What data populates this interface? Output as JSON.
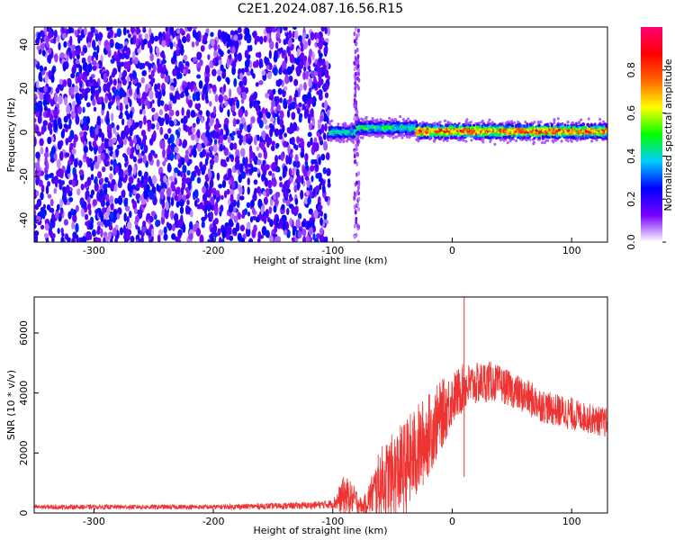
{
  "title": "C2E1.2024.087.16.56.R15",
  "chart_data": [
    {
      "type": "heatmap",
      "xlabel": "Height of straight line (km)",
      "ylabel": "Frequency (Hz)",
      "xlim": [
        -350,
        130
      ],
      "ylim": [
        -50,
        48
      ],
      "x_ticks": [
        -300,
        -200,
        -100,
        0,
        100
      ],
      "x_tick_labels": [
        "-300",
        "-200",
        "-100",
        "0",
        "100"
      ],
      "y_ticks": [
        -40,
        -20,
        0,
        20,
        40
      ],
      "y_tick_labels": [
        "-40",
        "-20",
        "0",
        "20",
        "40"
      ],
      "colorbar": {
        "label": "Normalized spectral amplitude",
        "range": [
          0,
          1
        ],
        "ticks": [
          0.0,
          0.2,
          0.4,
          0.6,
          0.8
        ],
        "tick_labels": [
          "0.0",
          "0.2",
          "0.4",
          "0.6",
          "0.8"
        ],
        "colormap": [
          "#ffffff",
          "#7700ff",
          "#0000ff",
          "#00ccff",
          "#00ff00",
          "#ffff00",
          "#ff6600",
          "#ff0000",
          "#ff0077"
        ]
      },
      "regions": [
        {
          "x_range": [
            -350,
            -103
          ],
          "description": "broadband noise, amplitude 0.1-0.3"
        },
        {
          "x_range": [
            -103,
            -80
          ],
          "center_frequency_hz": 0,
          "peak_amplitude": 0.5
        },
        {
          "x_range": [
            -80,
            -30
          ],
          "center_frequency_hz": 2,
          "peak_amplitude": 0.55
        },
        {
          "x_range": [
            -30,
            130
          ],
          "center_frequency_hz": 0.5,
          "peak_amplitude": 0.95
        }
      ]
    },
    {
      "type": "line",
      "xlabel": "Height of straight line (km)",
      "ylabel": "SNR (10 * v/v)",
      "xlim": [
        -350,
        130
      ],
      "ylim": [
        0,
        7200
      ],
      "x_ticks": [
        -300,
        -200,
        -100,
        0,
        100
      ],
      "x_tick_labels": [
        "-300",
        "-200",
        "-100",
        "0",
        "100"
      ],
      "y_ticks": [
        0,
        2000,
        4000,
        6000
      ],
      "y_tick_labels": [
        "0",
        "2000",
        "4000",
        "6000"
      ],
      "color": "#ee3333",
      "envelope": {
        "x": [
          -350,
          -300,
          -200,
          -120,
          -100,
          -90,
          -80,
          -75,
          -60,
          -40,
          -30,
          -20,
          -10,
          0,
          10,
          20,
          30,
          40,
          50,
          60,
          70,
          80,
          90,
          100,
          110,
          120,
          130
        ],
        "y_mean": [
          200,
          200,
          200,
          250,
          300,
          600,
          400,
          200,
          1000,
          1500,
          2000,
          2600,
          3200,
          3800,
          4200,
          4300,
          4400,
          4300,
          4100,
          3900,
          3700,
          3500,
          3400,
          3300,
          3200,
          3100,
          3000
        ],
        "y_spread": [
          80,
          80,
          80,
          120,
          150,
          700,
          400,
          200,
          1200,
          1600,
          1600,
          1400,
          1200,
          900,
          800,
          700,
          700,
          600,
          600,
          600,
          600,
          550,
          550,
          550,
          500,
          500,
          500
        ]
      },
      "spikes": [
        {
          "x": 10,
          "y": 7200
        }
      ]
    }
  ]
}
